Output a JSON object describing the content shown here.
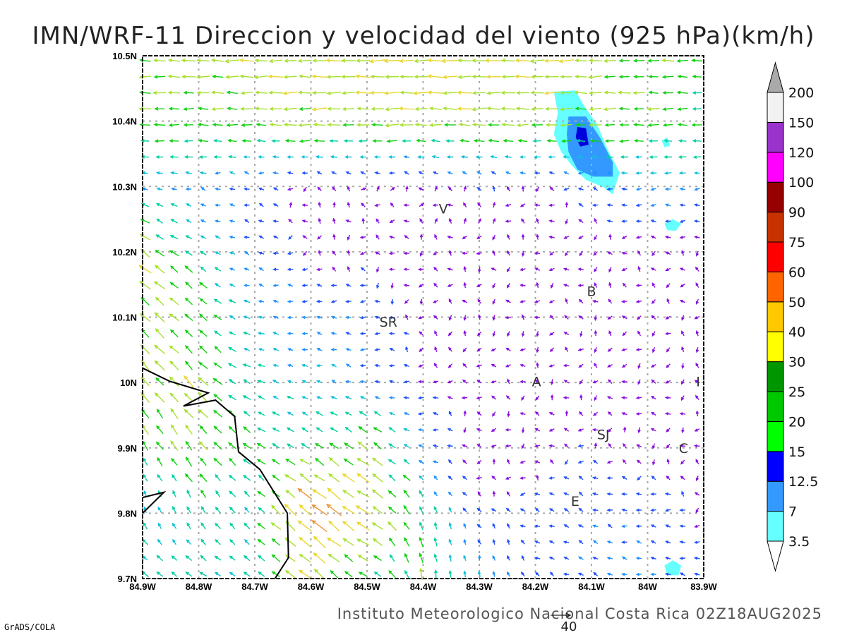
{
  "chart_data": {
    "type": "vector-field",
    "title": "IMN/WRF-11 Direccion y velocidad del viento (925 hPa)(km/h)",
    "footer": "Instituto Meteorologico Nacional Costa Rica 02Z18AUG2025",
    "credit": "GrADS/COLA",
    "units": "km/h",
    "lon_range_west": [
      84.9,
      83.9
    ],
    "lat_range_north": [
      9.7,
      10.5
    ],
    "grid": true,
    "x_ticks": [
      "84.9W",
      "84.8W",
      "84.7W",
      "84.6W",
      "84.5W",
      "84.4W",
      "84.3W",
      "84.2W",
      "84.1W",
      "84W",
      "83.9W"
    ],
    "x_tick_values": [
      84.9,
      84.8,
      84.7,
      84.6,
      84.5,
      84.4,
      84.3,
      84.2,
      84.1,
      84.0,
      83.9
    ],
    "y_ticks": [
      "10.5N",
      "10.4N",
      "10.3N",
      "10.2N",
      "10.1N",
      "10N",
      "9.9N",
      "9.8N",
      "9.7N"
    ],
    "y_tick_values": [
      10.5,
      10.4,
      10.3,
      10.2,
      10.1,
      10.0,
      9.9,
      9.8,
      9.7
    ],
    "colorbar": {
      "labels": [
        "3.5",
        "7",
        "12.5",
        "15",
        "20",
        "25",
        "30",
        "40",
        "50",
        "60",
        "75",
        "90",
        "100",
        "120",
        "150",
        "200"
      ],
      "colors": [
        "#66ffff",
        "#3399ff",
        "#0000ff",
        "#00ff00",
        "#00c800",
        "#009600",
        "#ffff00",
        "#ffc800",
        "#ff6400",
        "#ff0000",
        "#c83200",
        "#960000",
        "#ff00ff",
        "#9933cc",
        "#f2f2f2"
      ],
      "over_color": "#aaaaaa",
      "under_color": "#ffffff",
      "placement": "right"
    },
    "reference_vector": {
      "value": 40,
      "label": "40"
    },
    "wind_grid": {
      "lons_west": [
        84.9,
        84.8,
        84.7,
        84.6,
        84.5,
        84.4,
        84.3,
        84.2,
        84.1,
        84.0,
        83.9
      ],
      "lats": [
        10.5,
        10.4,
        10.3,
        10.2,
        10.1,
        10.0,
        9.9,
        9.8,
        9.7
      ],
      "u": [
        [
          -25,
          -25,
          -26,
          -27,
          -28,
          -30,
          -30,
          -28,
          -25,
          -22,
          -20
        ],
        [
          -20,
          -20,
          -22,
          -24,
          -25,
          -25,
          -25,
          -24,
          -22,
          -20,
          -18
        ],
        [
          -10,
          -8,
          -5,
          -2,
          0,
          0,
          -3,
          -2,
          -5,
          -10,
          -8
        ],
        [
          -20,
          -12,
          -6,
          -2,
          -2,
          -1,
          -1,
          -1,
          -1,
          -1,
          -1
        ],
        [
          -18,
          -15,
          -10,
          -8,
          -6,
          -2,
          -1,
          -1,
          -1,
          -1,
          -1
        ],
        [
          -15,
          -18,
          -12,
          -10,
          -8,
          -3,
          -2,
          -2,
          -2,
          -2,
          -2
        ],
        [
          -10,
          -15,
          -15,
          -14,
          -20,
          -8,
          -2,
          -2,
          -3,
          -2,
          -2
        ],
        [
          -5,
          -6,
          -10,
          -30,
          -25,
          -5,
          -3,
          -4,
          -6,
          -6,
          -3
        ],
        [
          -12,
          -12,
          -12,
          -20,
          -15,
          -3,
          -2,
          -4,
          -6,
          -8,
          -5
        ]
      ],
      "v": [
        [
          0,
          0,
          0,
          0,
          0,
          0,
          0,
          0,
          0,
          0,
          0
        ],
        [
          0,
          0,
          0,
          0,
          0,
          0,
          0,
          0,
          0,
          0,
          0
        ],
        [
          2,
          2,
          2,
          1,
          1,
          2,
          3,
          0,
          2,
          0,
          0
        ],
        [
          15,
          8,
          2,
          0,
          0,
          0,
          0,
          0,
          0,
          0,
          0
        ],
        [
          18,
          12,
          3,
          1,
          0,
          0,
          0,
          0,
          0,
          0,
          0
        ],
        [
          18,
          18,
          5,
          3,
          2,
          0,
          0,
          0,
          0,
          0,
          0
        ],
        [
          15,
          18,
          10,
          8,
          15,
          3,
          0,
          0,
          2,
          0,
          0
        ],
        [
          12,
          12,
          10,
          25,
          15,
          15,
          3,
          2,
          3,
          0,
          0
        ],
        [
          8,
          8,
          8,
          18,
          8,
          20,
          10,
          3,
          3,
          2,
          0
        ]
      ]
    },
    "shading": [
      {
        "level": "3.5-7",
        "color": "#66ffff",
        "polygon": [
          [
            84.167,
            10.445
          ],
          [
            84.129,
            10.447
          ],
          [
            84.113,
            10.423
          ],
          [
            84.091,
            10.396
          ],
          [
            84.072,
            10.358
          ],
          [
            84.05,
            10.321
          ],
          [
            84.062,
            10.288
          ],
          [
            84.079,
            10.299
          ],
          [
            84.11,
            10.31
          ],
          [
            84.135,
            10.332
          ],
          [
            84.154,
            10.353
          ],
          [
            84.167,
            10.38
          ],
          [
            84.16,
            10.413
          ]
        ]
      },
      {
        "level": "7-12.5",
        "color": "#3399ff",
        "polygon": [
          [
            84.141,
            10.407
          ],
          [
            84.11,
            10.407
          ],
          [
            84.085,
            10.375
          ],
          [
            84.062,
            10.337
          ],
          [
            84.062,
            10.315
          ],
          [
            84.097,
            10.315
          ],
          [
            84.125,
            10.326
          ],
          [
            84.141,
            10.353
          ],
          [
            84.144,
            10.38
          ]
        ]
      },
      {
        "level": "12.5-15",
        "color": "#0000dd",
        "polygon": [
          [
            84.125,
            10.391
          ],
          [
            84.11,
            10.389
          ],
          [
            84.105,
            10.364
          ],
          [
            84.12,
            10.361
          ],
          [
            84.128,
            10.375
          ]
        ]
      },
      {
        "level": "3.5-7",
        "color": "#66ffff",
        "polygon": [
          [
            83.97,
            10.243
          ],
          [
            83.955,
            10.25
          ],
          [
            83.94,
            10.243
          ],
          [
            83.95,
            10.232
          ],
          [
            83.965,
            10.233
          ]
        ]
      },
      {
        "level": "3.5-7",
        "color": "#66ffff",
        "polygon": [
          [
            83.975,
            10.37
          ],
          [
            83.965,
            10.375
          ],
          [
            83.96,
            10.362
          ],
          [
            83.97,
            10.36
          ]
        ]
      },
      {
        "level": "3.5-7",
        "color": "#66ffff",
        "polygon": [
          [
            83.97,
            9.72
          ],
          [
            83.955,
            9.728
          ],
          [
            83.94,
            9.72
          ],
          [
            83.945,
            9.705
          ],
          [
            83.965,
            9.705
          ]
        ]
      }
    ],
    "coastline": [
      [
        [
          84.9,
          10.022
        ],
        [
          84.852,
          10.002
        ],
        [
          84.783,
          9.984
        ],
        [
          84.827,
          9.964
        ],
        [
          84.77,
          9.973
        ],
        [
          84.736,
          9.948
        ],
        [
          84.729,
          9.894
        ],
        [
          84.691,
          9.867
        ],
        [
          84.642,
          9.8
        ],
        [
          84.64,
          9.732
        ],
        [
          84.664,
          9.7
        ]
      ],
      [
        [
          84.9,
          9.824
        ],
        [
          84.862,
          9.832
        ],
        [
          84.9,
          9.8
        ]
      ]
    ],
    "stations": [
      {
        "label": "V",
        "lon_west": 84.364,
        "lat": 10.266
      },
      {
        "label": "SR",
        "lon_west": 84.462,
        "lat": 10.093
      },
      {
        "label": "B",
        "lon_west": 84.1,
        "lat": 10.14
      },
      {
        "label": "A",
        "lon_west": 84.198,
        "lat": 10.002
      },
      {
        "label": "SJ",
        "lon_west": 84.079,
        "lat": 9.921
      },
      {
        "label": "C",
        "lon_west": 83.936,
        "lat": 9.9
      },
      {
        "label": "E",
        "lon_west": 84.129,
        "lat": 9.819
      },
      {
        "label": "I",
        "lon_west": 83.91,
        "lat": 10.002
      }
    ]
  }
}
